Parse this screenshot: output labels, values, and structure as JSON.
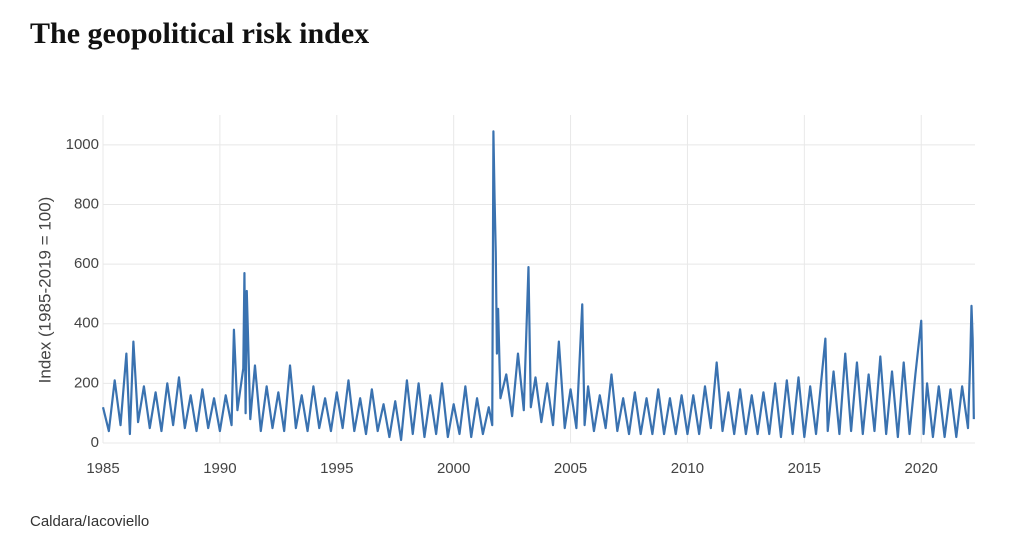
{
  "chart_data": {
    "type": "line",
    "title": "The geopolitical risk index",
    "ylabel": "Index (1985-2019 = 100)",
    "source": "Caldara/Iacoviello",
    "xlim": [
      1985,
      2022.3
    ],
    "xticks": [
      1985,
      1990,
      1995,
      2000,
      2005,
      2010,
      2015,
      2020
    ],
    "ylim": [
      0,
      1100
    ],
    "yticks": [
      0,
      200,
      400,
      600,
      800,
      1000
    ],
    "grid": true,
    "x": [
      1985.0,
      1985.25,
      1985.5,
      1985.75,
      1986.0,
      1986.15,
      1986.3,
      1986.5,
      1986.75,
      1987.0,
      1987.25,
      1987.5,
      1987.75,
      1988.0,
      1988.25,
      1988.5,
      1988.75,
      1989.0,
      1989.25,
      1989.5,
      1989.75,
      1990.0,
      1990.25,
      1990.5,
      1990.6,
      1990.75,
      1991.0,
      1991.05,
      1991.1,
      1991.15,
      1991.3,
      1991.5,
      1991.75,
      1992.0,
      1992.25,
      1992.5,
      1992.75,
      1993.0,
      1993.25,
      1993.5,
      1993.75,
      1994.0,
      1994.25,
      1994.5,
      1994.75,
      1995.0,
      1995.25,
      1995.5,
      1995.75,
      1996.0,
      1996.25,
      1996.5,
      1996.75,
      1997.0,
      1997.25,
      1997.5,
      1997.75,
      1998.0,
      1998.25,
      1998.5,
      1998.75,
      1999.0,
      1999.25,
      1999.5,
      1999.75,
      2000.0,
      2000.25,
      2000.5,
      2000.75,
      2001.0,
      2001.25,
      2001.5,
      2001.65,
      2001.7,
      2001.75,
      2001.8,
      2001.85,
      2001.9,
      2002.0,
      2002.25,
      2002.5,
      2002.75,
      2003.0,
      2003.2,
      2003.3,
      2003.5,
      2003.75,
      2004.0,
      2004.25,
      2004.5,
      2004.75,
      2005.0,
      2005.25,
      2005.5,
      2005.6,
      2005.75,
      2006.0,
      2006.25,
      2006.5,
      2006.75,
      2007.0,
      2007.25,
      2007.5,
      2007.75,
      2008.0,
      2008.25,
      2008.5,
      2008.75,
      2009.0,
      2009.25,
      2009.5,
      2009.75,
      2010.0,
      2010.25,
      2010.5,
      2010.75,
      2011.0,
      2011.25,
      2011.5,
      2011.75,
      2012.0,
      2012.25,
      2012.5,
      2012.75,
      2013.0,
      2013.25,
      2013.5,
      2013.75,
      2014.0,
      2014.25,
      2014.5,
      2014.75,
      2015.0,
      2015.25,
      2015.5,
      2015.9,
      2016.0,
      2016.25,
      2016.5,
      2016.75,
      2017.0,
      2017.25,
      2017.5,
      2017.75,
      2018.0,
      2018.25,
      2018.5,
      2018.75,
      2019.0,
      2019.25,
      2019.5,
      2019.75,
      2020.0,
      2020.1,
      2020.25,
      2020.5,
      2020.75,
      2021.0,
      2021.25,
      2021.5,
      2021.75,
      2022.0,
      2022.1,
      2022.15,
      2022.2,
      2022.25
    ],
    "series": [
      {
        "name": "Geopolitical risk index",
        "color": "#3a72b0",
        "values": [
          120,
          40,
          210,
          60,
          300,
          30,
          340,
          70,
          190,
          50,
          170,
          40,
          200,
          60,
          220,
          50,
          160,
          40,
          180,
          50,
          150,
          40,
          160,
          60,
          380,
          110,
          250,
          570,
          100,
          510,
          80,
          260,
          40,
          190,
          50,
          170,
          40,
          260,
          50,
          160,
          40,
          190,
          50,
          150,
          40,
          170,
          50,
          210,
          40,
          150,
          30,
          180,
          40,
          130,
          20,
          140,
          10,
          210,
          30,
          200,
          20,
          160,
          30,
          200,
          20,
          130,
          30,
          190,
          20,
          150,
          30,
          120,
          60,
          1045,
          820,
          640,
          300,
          450,
          150,
          230,
          90,
          300,
          110,
          590,
          120,
          220,
          70,
          200,
          60,
          340,
          50,
          180,
          50,
          465,
          60,
          190,
          40,
          160,
          50,
          230,
          40,
          150,
          30,
          170,
          30,
          150,
          30,
          180,
          30,
          150,
          30,
          160,
          30,
          160,
          30,
          190,
          50,
          270,
          40,
          170,
          30,
          180,
          30,
          160,
          30,
          170,
          30,
          200,
          20,
          210,
          30,
          220,
          20,
          190,
          30,
          350,
          40,
          240,
          30,
          300,
          40,
          270,
          30,
          230,
          40,
          290,
          30,
          240,
          20,
          270,
          30,
          230,
          410,
          30,
          200,
          20,
          190,
          20,
          180,
          20,
          190,
          50,
          290,
          460,
          350,
          80
        ]
      }
    ]
  }
}
